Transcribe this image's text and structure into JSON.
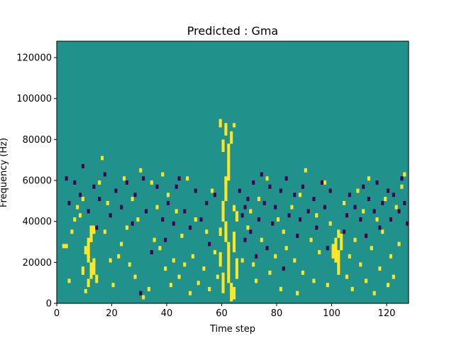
{
  "chart_data": {
    "type": "heatmap",
    "title": "Predicted : Gma",
    "xlabel": "Time step",
    "ylabel": "Frequency (Hz)",
    "xlim": [
      0,
      128
    ],
    "ylim": [
      0,
      128000
    ],
    "x_ticks": [
      0,
      20,
      40,
      60,
      80,
      100,
      120
    ],
    "y_ticks": [
      0,
      20000,
      40000,
      60000,
      80000,
      100000,
      120000
    ],
    "x_tick_labels": [
      "0",
      "20",
      "40",
      "60",
      "80",
      "100",
      "120"
    ],
    "y_tick_labels": [
      "0",
      "20000",
      "40000",
      "60000",
      "80000",
      "100000",
      "120000"
    ],
    "grid": false,
    "legend": "none",
    "colors": {
      "background": "#21918c",
      "high": "#fde725",
      "low": "#440154"
    },
    "bins": 128,
    "bin_height_hz": 2000,
    "high_cells": [
      [
        63,
        1,
        10
      ],
      [
        62,
        10,
        30
      ],
      [
        61,
        30,
        40
      ],
      [
        60,
        40,
        50
      ],
      [
        61,
        50,
        60
      ],
      [
        62,
        60,
        70
      ],
      [
        64,
        2,
        8
      ],
      [
        60,
        5,
        15
      ],
      [
        65,
        12,
        22
      ],
      [
        59,
        18,
        25
      ],
      [
        64,
        25,
        35
      ],
      [
        59,
        33,
        37
      ],
      [
        62,
        70,
        78
      ],
      [
        60,
        74,
        80
      ],
      [
        63,
        78,
        84
      ],
      [
        61,
        82,
        88
      ],
      [
        59,
        86,
        90
      ],
      [
        64,
        86,
        88
      ],
      [
        61,
        58,
        62
      ],
      [
        65,
        40,
        45
      ],
      [
        64,
        45,
        48
      ],
      [
        11,
        20,
        32
      ],
      [
        10,
        24,
        28
      ],
      [
        12,
        12,
        20
      ],
      [
        13,
        16,
        22
      ],
      [
        9,
        14,
        18
      ],
      [
        14,
        10,
        14
      ],
      [
        11,
        8,
        12
      ],
      [
        12,
        30,
        38
      ],
      [
        13,
        34,
        38
      ],
      [
        101,
        20,
        32
      ],
      [
        102,
        14,
        26
      ],
      [
        100,
        22,
        29
      ],
      [
        103,
        26,
        34
      ],
      [
        102,
        32,
        36
      ]
    ],
    "high_points": [
      [
        2,
        27
      ],
      [
        3,
        27
      ],
      [
        4,
        10
      ],
      [
        5,
        34
      ],
      [
        6,
        40
      ],
      [
        7,
        46
      ],
      [
        8,
        42
      ],
      [
        9,
        50
      ],
      [
        10,
        5
      ],
      [
        11,
        22
      ],
      [
        12,
        30
      ],
      [
        13,
        14
      ],
      [
        15,
        58
      ],
      [
        16,
        70
      ],
      [
        17,
        34
      ],
      [
        18,
        48
      ],
      [
        19,
        20
      ],
      [
        20,
        8
      ],
      [
        22,
        22
      ],
      [
        23,
        28
      ],
      [
        24,
        60
      ],
      [
        25,
        36
      ],
      [
        26,
        18
      ],
      [
        27,
        50
      ],
      [
        28,
        12
      ],
      [
        29,
        40
      ],
      [
        30,
        64
      ],
      [
        31,
        2
      ],
      [
        33,
        6
      ],
      [
        34,
        58
      ],
      [
        35,
        30
      ],
      [
        36,
        46
      ],
      [
        37,
        26
      ],
      [
        38,
        62
      ],
      [
        39,
        16
      ],
      [
        40,
        52
      ],
      [
        41,
        8
      ],
      [
        42,
        20
      ],
      [
        43,
        44
      ],
      [
        44,
        12
      ],
      [
        45,
        32
      ],
      [
        46,
        18
      ],
      [
        47,
        60
      ],
      [
        48,
        4
      ],
      [
        49,
        22
      ],
      [
        50,
        40
      ],
      [
        51,
        9
      ],
      [
        53,
        16
      ],
      [
        54,
        34
      ],
      [
        55,
        6
      ],
      [
        56,
        54
      ],
      [
        57,
        24
      ],
      [
        58,
        12
      ],
      [
        67,
        20
      ],
      [
        69,
        36
      ],
      [
        70,
        44
      ],
      [
        71,
        18
      ],
      [
        72,
        10
      ],
      [
        73,
        50
      ],
      [
        74,
        30
      ],
      [
        76,
        60
      ],
      [
        77,
        14
      ],
      [
        79,
        22
      ],
      [
        80,
        40
      ],
      [
        81,
        6
      ],
      [
        82,
        34
      ],
      [
        83,
        26
      ],
      [
        85,
        46
      ],
      [
        86,
        20
      ],
      [
        87,
        4
      ],
      [
        88,
        52
      ],
      [
        89,
        14
      ],
      [
        90,
        64
      ],
      [
        92,
        30
      ],
      [
        93,
        10
      ],
      [
        94,
        42
      ],
      [
        95,
        24
      ],
      [
        97,
        58
      ],
      [
        98,
        8
      ],
      [
        99,
        38
      ],
      [
        104,
        48
      ],
      [
        105,
        12
      ],
      [
        106,
        22
      ],
      [
        107,
        6
      ],
      [
        108,
        30
      ],
      [
        109,
        54
      ],
      [
        110,
        18
      ],
      [
        111,
        44
      ],
      [
        112,
        10
      ],
      [
        113,
        60
      ],
      [
        114,
        26
      ],
      [
        115,
        4
      ],
      [
        116,
        40
      ],
      [
        117,
        16
      ],
      [
        118,
        34
      ],
      [
        119,
        50
      ],
      [
        120,
        8
      ],
      [
        121,
        22
      ],
      [
        122,
        12
      ],
      [
        123,
        46
      ],
      [
        124,
        28
      ],
      [
        125,
        56
      ],
      [
        126,
        62
      ]
    ],
    "low_points": [
      [
        3,
        60
      ],
      [
        4,
        48
      ],
      [
        6,
        58
      ],
      [
        8,
        52
      ],
      [
        9,
        66
      ],
      [
        11,
        44
      ],
      [
        13,
        56
      ],
      [
        14,
        36
      ],
      [
        15,
        50
      ],
      [
        17,
        62
      ],
      [
        19,
        42
      ],
      [
        21,
        54
      ],
      [
        23,
        46
      ],
      [
        25,
        58
      ],
      [
        27,
        38
      ],
      [
        28,
        52
      ],
      [
        30,
        4
      ],
      [
        31,
        60
      ],
      [
        32,
        44
      ],
      [
        34,
        24
      ],
      [
        36,
        56
      ],
      [
        38,
        40
      ],
      [
        39,
        30
      ],
      [
        40,
        48
      ],
      [
        42,
        38
      ],
      [
        43,
        56
      ],
      [
        44,
        60
      ],
      [
        46,
        44
      ],
      [
        48,
        36
      ],
      [
        50,
        54
      ],
      [
        52,
        40
      ],
      [
        54,
        48
      ],
      [
        55,
        28
      ],
      [
        57,
        52
      ],
      [
        66,
        54
      ],
      [
        67,
        42
      ],
      [
        68,
        30
      ],
      [
        68,
        46
      ],
      [
        69,
        50
      ],
      [
        70,
        34
      ],
      [
        71,
        58
      ],
      [
        72,
        22
      ],
      [
        73,
        40
      ],
      [
        74,
        62
      ],
      [
        75,
        48
      ],
      [
        76,
        26
      ],
      [
        77,
        56
      ],
      [
        78,
        38
      ],
      [
        79,
        46
      ],
      [
        81,
        54
      ],
      [
        82,
        16
      ],
      [
        83,
        60
      ],
      [
        84,
        42
      ],
      [
        86,
        52
      ],
      [
        87,
        32
      ],
      [
        88,
        40
      ],
      [
        89,
        56
      ],
      [
        91,
        44
      ],
      [
        93,
        50
      ],
      [
        94,
        36
      ],
      [
        96,
        58
      ],
      [
        97,
        46
      ],
      [
        98,
        26
      ],
      [
        99,
        54
      ],
      [
        104,
        34
      ],
      [
        105,
        42
      ],
      [
        106,
        52
      ],
      [
        108,
        46
      ],
      [
        110,
        40
      ],
      [
        111,
        56
      ],
      [
        112,
        32
      ],
      [
        113,
        50
      ],
      [
        115,
        44
      ],
      [
        116,
        58
      ],
      [
        117,
        36
      ],
      [
        118,
        48
      ],
      [
        120,
        54
      ],
      [
        121,
        40
      ],
      [
        122,
        52
      ],
      [
        124,
        44
      ],
      [
        125,
        60
      ],
      [
        126,
        48
      ],
      [
        127,
        38
      ]
    ]
  }
}
